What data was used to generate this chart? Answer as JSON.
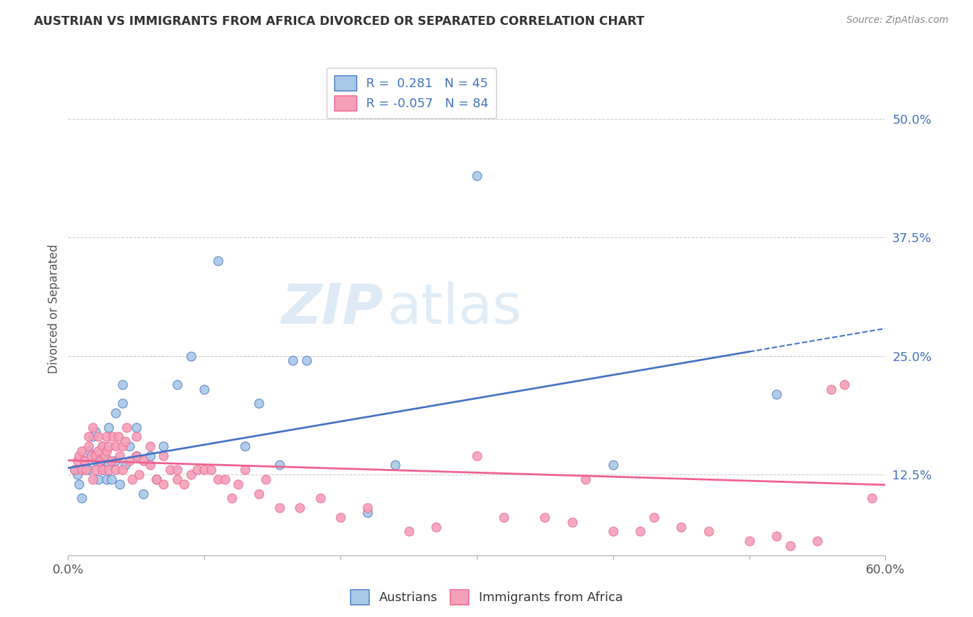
{
  "title": "AUSTRIAN VS IMMIGRANTS FROM AFRICA DIVORCED OR SEPARATED CORRELATION CHART",
  "source": "Source: ZipAtlas.com",
  "ylabel": "Divorced or Separated",
  "color_austrians": "#a8c8e8",
  "color_africa": "#f4a0b8",
  "line_color_austrians": "#4472c4",
  "line_color_africa": "#f06090",
  "watermark_zip": "ZIP",
  "watermark_atlas": "atlas",
  "background_color": "#ffffff",
  "grid_color": "#cccccc",
  "ytick_labels": [
    "12.5%",
    "25.0%",
    "37.5%",
    "50.0%"
  ],
  "ytick_values": [
    0.125,
    0.25,
    0.375,
    0.5
  ],
  "legend_label1": "R =  0.281   N = 45",
  "legend_label2": "R = -0.057   N = 84",
  "aus_R": 0.281,
  "afr_R": -0.057,
  "aus_N": 45,
  "afr_N": 84,
  "austrians_x": [
    0.005,
    0.007,
    0.008,
    0.01,
    0.012,
    0.015,
    0.015,
    0.018,
    0.02,
    0.02,
    0.022,
    0.025,
    0.025,
    0.027,
    0.028,
    0.03,
    0.03,
    0.032,
    0.035,
    0.035,
    0.038,
    0.04,
    0.04,
    0.042,
    0.045,
    0.05,
    0.05,
    0.055,
    0.06,
    0.065,
    0.07,
    0.08,
    0.09,
    0.1,
    0.11,
    0.13,
    0.14,
    0.155,
    0.165,
    0.175,
    0.22,
    0.24,
    0.3,
    0.4,
    0.52
  ],
  "austrians_y": [
    0.13,
    0.125,
    0.115,
    0.1,
    0.14,
    0.13,
    0.15,
    0.165,
    0.14,
    0.17,
    0.12,
    0.13,
    0.155,
    0.14,
    0.12,
    0.135,
    0.175,
    0.12,
    0.14,
    0.19,
    0.115,
    0.2,
    0.22,
    0.135,
    0.155,
    0.145,
    0.175,
    0.105,
    0.145,
    0.12,
    0.155,
    0.22,
    0.25,
    0.215,
    0.35,
    0.155,
    0.2,
    0.135,
    0.245,
    0.245,
    0.085,
    0.135,
    0.44,
    0.135,
    0.21
  ],
  "africa_x": [
    0.005,
    0.007,
    0.008,
    0.01,
    0.01,
    0.012,
    0.013,
    0.015,
    0.015,
    0.017,
    0.018,
    0.018,
    0.02,
    0.02,
    0.022,
    0.022,
    0.023,
    0.025,
    0.025,
    0.027,
    0.028,
    0.028,
    0.03,
    0.03,
    0.032,
    0.033,
    0.035,
    0.035,
    0.037,
    0.038,
    0.04,
    0.04,
    0.042,
    0.043,
    0.045,
    0.047,
    0.05,
    0.05,
    0.052,
    0.055,
    0.06,
    0.06,
    0.065,
    0.07,
    0.07,
    0.075,
    0.08,
    0.08,
    0.085,
    0.09,
    0.095,
    0.1,
    0.105,
    0.11,
    0.115,
    0.12,
    0.125,
    0.13,
    0.14,
    0.145,
    0.155,
    0.17,
    0.185,
    0.2,
    0.22,
    0.25,
    0.27,
    0.3,
    0.32,
    0.35,
    0.37,
    0.38,
    0.4,
    0.42,
    0.43,
    0.45,
    0.47,
    0.5,
    0.52,
    0.53,
    0.55,
    0.56,
    0.57,
    0.59
  ],
  "africa_y": [
    0.13,
    0.14,
    0.145,
    0.13,
    0.15,
    0.14,
    0.13,
    0.155,
    0.165,
    0.145,
    0.12,
    0.175,
    0.13,
    0.145,
    0.15,
    0.165,
    0.14,
    0.13,
    0.155,
    0.145,
    0.15,
    0.165,
    0.13,
    0.155,
    0.14,
    0.165,
    0.13,
    0.155,
    0.165,
    0.145,
    0.13,
    0.155,
    0.16,
    0.175,
    0.14,
    0.12,
    0.145,
    0.165,
    0.125,
    0.14,
    0.135,
    0.155,
    0.12,
    0.145,
    0.115,
    0.13,
    0.13,
    0.12,
    0.115,
    0.125,
    0.13,
    0.13,
    0.13,
    0.12,
    0.12,
    0.1,
    0.115,
    0.13,
    0.105,
    0.12,
    0.09,
    0.09,
    0.1,
    0.08,
    0.09,
    0.065,
    0.07,
    0.145,
    0.08,
    0.08,
    0.075,
    0.12,
    0.065,
    0.065,
    0.08,
    0.07,
    0.065,
    0.055,
    0.06,
    0.05,
    0.055,
    0.215,
    0.22,
    0.1
  ]
}
